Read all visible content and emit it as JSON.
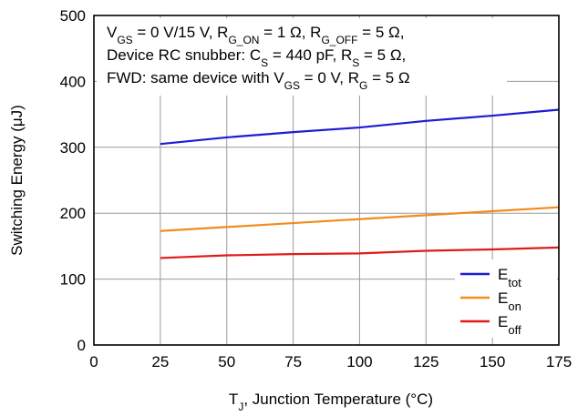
{
  "chart_data": {
    "type": "line",
    "xlabel": "T_J, Junction Temperature (°C)",
    "ylabel": "Switching Energy (μJ)",
    "xlim": [
      0,
      175
    ],
    "ylim": [
      0,
      500
    ],
    "xticks": [
      0,
      25,
      50,
      75,
      100,
      125,
      150,
      175
    ],
    "yticks": [
      0,
      100,
      200,
      300,
      400,
      500
    ],
    "grid": true,
    "legend_position": "bottom-right",
    "annotation_lines": [
      "V_GS = 0 V/15 V, R_G_ON = 1 Ω, R_G_OFF = 5 Ω,",
      "Device RC snubber: C_S = 440 pF, R_S = 5 Ω,",
      "FWD: same device with V_GS = 0 V, R_G = 5 Ω"
    ],
    "x": [
      25,
      50,
      75,
      100,
      125,
      150,
      175
    ],
    "series": [
      {
        "name": "E_tot",
        "color": "#1c1cd6",
        "values": [
          305,
          315,
          323,
          330,
          340,
          348,
          357
        ]
      },
      {
        "name": "E_on",
        "color": "#f28c1c",
        "values": [
          173,
          179,
          185,
          191,
          197,
          203,
          209
        ]
      },
      {
        "name": "E_off",
        "color": "#e01b1b",
        "values": [
          132,
          136,
          138,
          139,
          143,
          145,
          148
        ]
      }
    ]
  }
}
